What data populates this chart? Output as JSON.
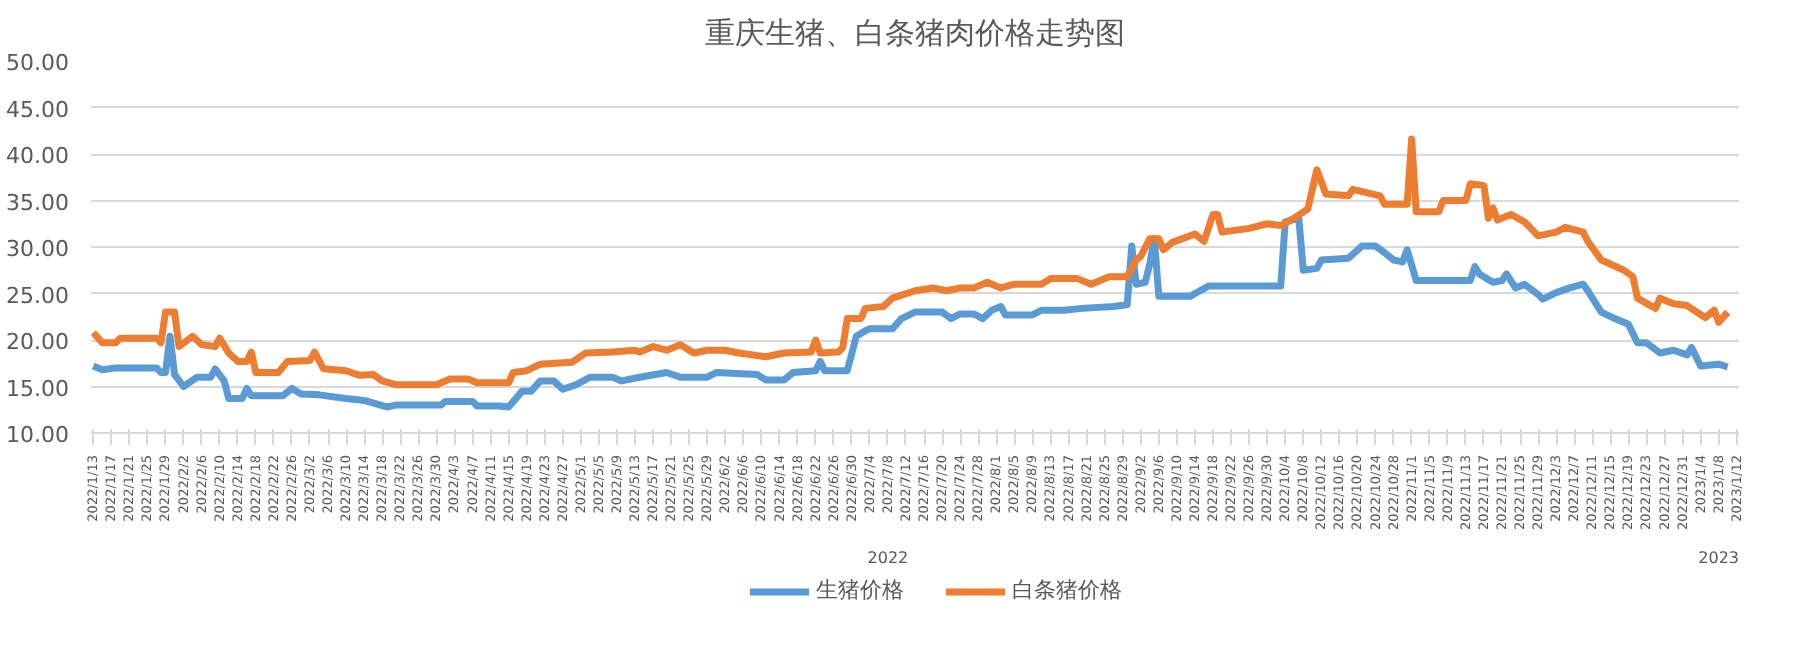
{
  "chart_data": {
    "type": "line",
    "title": "重庆生猪、白条猪肉价格走势图",
    "xlim": [
      "2022-01-13",
      "2023-01-12"
    ],
    "ylim": [
      10,
      50
    ],
    "yticks": [
      {
        "value": 10,
        "label": "10.00"
      },
      {
        "value": 15,
        "label": "15.00"
      },
      {
        "value": 20,
        "label": "20.00"
      },
      {
        "value": 25,
        "label": "25.00"
      },
      {
        "value": 30,
        "label": "30.00"
      },
      {
        "value": 35,
        "label": "35.00"
      },
      {
        "value": 40,
        "label": "40.00"
      },
      {
        "value": 45,
        "label": "45.00"
      },
      {
        "value": 50,
        "label": "50.00"
      }
    ],
    "xticks": [
      {
        "value": "2022-01-13",
        "label": "2022/1/13"
      },
      {
        "value": "2022-01-17",
        "label": "2022/1/17"
      },
      {
        "value": "2022-01-21",
        "label": "2022/1/21"
      },
      {
        "value": "2022-01-25",
        "label": "2022/1/25"
      },
      {
        "value": "2022-01-29",
        "label": "2022/1/29"
      },
      {
        "value": "2022-02-02",
        "label": "2022/2/2"
      },
      {
        "value": "2022-02-06",
        "label": "2022/2/6"
      },
      {
        "value": "2022-02-10",
        "label": "2022/2/10"
      },
      {
        "value": "2022-02-14",
        "label": "2022/2/14"
      },
      {
        "value": "2022-02-18",
        "label": "2022/2/18"
      },
      {
        "value": "2022-02-22",
        "label": "2022/2/22"
      },
      {
        "value": "2022-02-26",
        "label": "2022/2/26"
      },
      {
        "value": "2022-03-02",
        "label": "2022/3/2"
      },
      {
        "value": "2022-03-06",
        "label": "2022/3/6"
      },
      {
        "value": "2022-03-10",
        "label": "2022/3/10"
      },
      {
        "value": "2022-03-14",
        "label": "2022/3/14"
      },
      {
        "value": "2022-03-18",
        "label": "2022/3/18"
      },
      {
        "value": "2022-03-22",
        "label": "2022/3/22"
      },
      {
        "value": "2022-03-26",
        "label": "2022/3/26"
      },
      {
        "value": "2022-03-30",
        "label": "2022/3/30"
      },
      {
        "value": "2022-04-03",
        "label": "2022/4/3"
      },
      {
        "value": "2022-04-07",
        "label": "2022/4/7"
      },
      {
        "value": "2022-04-11",
        "label": "2022/4/11"
      },
      {
        "value": "2022-04-15",
        "label": "2022/4/15"
      },
      {
        "value": "2022-04-19",
        "label": "2022/4/19"
      },
      {
        "value": "2022-04-23",
        "label": "2022/4/23"
      },
      {
        "value": "2022-04-27",
        "label": "2022/4/27"
      },
      {
        "value": "2022-05-01",
        "label": "2022/5/1"
      },
      {
        "value": "2022-05-05",
        "label": "2022/5/5"
      },
      {
        "value": "2022-05-09",
        "label": "2022/5/9"
      },
      {
        "value": "2022-05-13",
        "label": "2022/5/13"
      },
      {
        "value": "2022-05-17",
        "label": "2022/5/17"
      },
      {
        "value": "2022-05-21",
        "label": "2022/5/21"
      },
      {
        "value": "2022-05-25",
        "label": "2022/5/25"
      },
      {
        "value": "2022-05-29",
        "label": "2022/5/29"
      },
      {
        "value": "2022-06-02",
        "label": "2022/6/2"
      },
      {
        "value": "2022-06-06",
        "label": "2022/6/6"
      },
      {
        "value": "2022-06-10",
        "label": "2022/6/10"
      },
      {
        "value": "2022-06-14",
        "label": "2022/6/14"
      },
      {
        "value": "2022-06-18",
        "label": "2022/6/18"
      },
      {
        "value": "2022-06-22",
        "label": "2022/6/22"
      },
      {
        "value": "2022-06-26",
        "label": "2022/6/26"
      },
      {
        "value": "2022-06-30",
        "label": "2022/6/30"
      },
      {
        "value": "2022-07-04",
        "label": "2022/7/4"
      },
      {
        "value": "2022-07-08",
        "label": "2022/7/8"
      },
      {
        "value": "2022-07-12",
        "label": "2022/7/12"
      },
      {
        "value": "2022-07-16",
        "label": "2022/7/16"
      },
      {
        "value": "2022-07-20",
        "label": "2022/7/20"
      },
      {
        "value": "2022-07-24",
        "label": "2022/7/24"
      },
      {
        "value": "2022-07-28",
        "label": "2022/7/28"
      },
      {
        "value": "2022-08-01",
        "label": "2022/8/1"
      },
      {
        "value": "2022-08-05",
        "label": "2022/8/5"
      },
      {
        "value": "2022-08-09",
        "label": "2022/8/9"
      },
      {
        "value": "2022-08-13",
        "label": "2022/8/13"
      },
      {
        "value": "2022-08-17",
        "label": "2022/8/17"
      },
      {
        "value": "2022-08-21",
        "label": "2022/8/21"
      },
      {
        "value": "2022-08-25",
        "label": "2022/8/25"
      },
      {
        "value": "2022-08-29",
        "label": "2022/8/29"
      },
      {
        "value": "2022-09-02",
        "label": "2022/9/2"
      },
      {
        "value": "2022-09-06",
        "label": "2022/9/6"
      },
      {
        "value": "2022-09-10",
        "label": "2022/9/10"
      },
      {
        "value": "2022-09-14",
        "label": "2022/9/14"
      },
      {
        "value": "2022-09-18",
        "label": "2022/9/18"
      },
      {
        "value": "2022-09-22",
        "label": "2022/9/22"
      },
      {
        "value": "2022-09-26",
        "label": "2022/9/26"
      },
      {
        "value": "2022-09-30",
        "label": "2022/9/30"
      },
      {
        "value": "2022-10-04",
        "label": "2022/10/4"
      },
      {
        "value": "2022-10-08",
        "label": "2022/10/8"
      },
      {
        "value": "2022-10-12",
        "label": "2022/10/12"
      },
      {
        "value": "2022-10-16",
        "label": "2022/10/16"
      },
      {
        "value": "2022-10-20",
        "label": "2022/10/20"
      },
      {
        "value": "2022-10-24",
        "label": "2022/10/24"
      },
      {
        "value": "2022-10-28",
        "label": "2022/10/28"
      },
      {
        "value": "2022-11-01",
        "label": "2022/11/1"
      },
      {
        "value": "2022-11-05",
        "label": "2022/11/5"
      },
      {
        "value": "2022-11-09",
        "label": "2022/11/9"
      },
      {
        "value": "2022-11-13",
        "label": "2022/11/13"
      },
      {
        "value": "2022-11-17",
        "label": "2022/11/17"
      },
      {
        "value": "2022-11-21",
        "label": "2022/11/21"
      },
      {
        "value": "2022-11-25",
        "label": "2022/11/25"
      },
      {
        "value": "2022-11-29",
        "label": "2022/11/29"
      },
      {
        "value": "2022-12-03",
        "label": "2022/12/3"
      },
      {
        "value": "2022-12-07",
        "label": "2022/12/7"
      },
      {
        "value": "2022-12-11",
        "label": "2022/12/11"
      },
      {
        "value": "2022-12-15",
        "label": "2022/12/15"
      },
      {
        "value": "2022-12-19",
        "label": "2022/12/19"
      },
      {
        "value": "2022-12-23",
        "label": "2022/12/23"
      },
      {
        "value": "2022-12-27",
        "label": "2022/12/27"
      },
      {
        "value": "2022-12-31",
        "label": "2022/12/31"
      },
      {
        "value": "2023-01-04",
        "label": "2023/1/4"
      },
      {
        "value": "2023-01-08",
        "label": "2023/1/8"
      },
      {
        "value": "2023-01-12",
        "label": "2023/1/12"
      }
    ],
    "annotations": [
      "2022",
      "2023"
    ],
    "grid": "y",
    "legend": "bottom",
    "marker": "none",
    "line_style": "solid",
    "series": [
      {
        "name": "生猪价格",
        "color": "#5b9bd5",
        "x": [
          "2022-01-13",
          "2022-01-15",
          "2022-01-18",
          "2022-01-27",
          "2022-01-28",
          "2022-01-29",
          "2022-01-30",
          "2022-01-31",
          "2022-02-02",
          "2022-02-05",
          "2022-02-08",
          "2022-02-09",
          "2022-02-11",
          "2022-02-12",
          "2022-02-15",
          "2022-02-16",
          "2022-02-17",
          "2022-02-24",
          "2022-02-26",
          "2022-02-28",
          "2022-03-04",
          "2022-03-10",
          "2022-03-14",
          "2022-03-19",
          "2022-03-21",
          "2022-03-31",
          "2022-04-01",
          "2022-04-07",
          "2022-04-08",
          "2022-04-13",
          "2022-04-15",
          "2022-04-18",
          "2022-04-20",
          "2022-04-22",
          "2022-04-25",
          "2022-04-27",
          "2022-04-30",
          "2022-05-03",
          "2022-05-08",
          "2022-05-10",
          "2022-05-14",
          "2022-05-20",
          "2022-05-23",
          "2022-05-29",
          "2022-05-31",
          "2022-06-09",
          "2022-06-11",
          "2022-06-15",
          "2022-06-17",
          "2022-06-22",
          "2022-06-23",
          "2022-06-24",
          "2022-06-29",
          "2022-07-01",
          "2022-07-03",
          "2022-07-04",
          "2022-07-09",
          "2022-07-11",
          "2022-07-14",
          "2022-07-20",
          "2022-07-22",
          "2022-07-24",
          "2022-07-27",
          "2022-07-29",
          "2022-07-31",
          "2022-08-02",
          "2022-08-03",
          "2022-08-09",
          "2022-08-11",
          "2022-08-16",
          "2022-08-20",
          "2022-08-27",
          "2022-08-30",
          "2022-08-31",
          "2022-09-01",
          "2022-09-03",
          "2022-09-04",
          "2022-09-05",
          "2022-09-06",
          "2022-09-13",
          "2022-09-14",
          "2022-09-17",
          "2022-10-03",
          "2022-10-04",
          "2022-10-07",
          "2022-10-08",
          "2022-10-11",
          "2022-10-12",
          "2022-10-18",
          "2022-10-21",
          "2022-10-24",
          "2022-10-26",
          "2022-10-28",
          "2022-10-30",
          "2022-10-31",
          "2022-11-02",
          "2022-11-14",
          "2022-11-15",
          "2022-11-16",
          "2022-11-19",
          "2022-11-21",
          "2022-11-22",
          "2022-11-24",
          "2022-11-26",
          "2022-11-29",
          "2022-11-30",
          "2022-12-03",
          "2022-12-06",
          "2022-12-09",
          "2022-12-10",
          "2022-12-13",
          "2022-12-16",
          "2022-12-19",
          "2022-12-21",
          "2022-12-23",
          "2022-12-26",
          "2022-12-29",
          "2023-01-01",
          "2023-01-02",
          "2023-01-04",
          "2023-01-08",
          "2023-01-10"
        ],
        "values": [
          17.2,
          16.8,
          17.0,
          17.0,
          16.5,
          16.5,
          20.4,
          16.3,
          15.0,
          16.0,
          16.0,
          16.9,
          15.6,
          13.7,
          13.7,
          14.8,
          14.0,
          14.0,
          14.8,
          14.2,
          14.1,
          13.7,
          13.5,
          12.8,
          13.0,
          13.0,
          13.4,
          13.4,
          12.9,
          12.9,
          12.8,
          14.5,
          14.5,
          15.6,
          15.6,
          14.7,
          15.2,
          16.0,
          16.0,
          15.6,
          16.0,
          16.5,
          16.0,
          16.0,
          16.5,
          16.3,
          15.7,
          15.7,
          16.5,
          16.7,
          17.7,
          16.7,
          16.7,
          20.4,
          21.0,
          21.2,
          21.2,
          22.3,
          23.0,
          23.0,
          22.3,
          22.8,
          22.8,
          22.3,
          23.2,
          23.6,
          22.7,
          22.7,
          23.2,
          23.2,
          23.4,
          23.6,
          23.8,
          30.1,
          26.0,
          26.2,
          28.2,
          30.9,
          24.7,
          24.7,
          25.0,
          25.8,
          25.8,
          32.7,
          33.1,
          27.5,
          27.7,
          28.6,
          28.8,
          30.1,
          30.1,
          29.4,
          28.6,
          28.4,
          29.7,
          26.4,
          26.4,
          27.9,
          27.1,
          26.2,
          26.4,
          27.1,
          25.6,
          26.0,
          24.9,
          24.4,
          25.1,
          25.6,
          26.0,
          25.3,
          23.0,
          22.3,
          21.7,
          19.7,
          19.7,
          18.6,
          18.9,
          18.4,
          19.2,
          17.2,
          17.4,
          17.1
        ]
      },
      {
        "name": "白条猪价格",
        "color": "#ed7d31",
        "x": [
          "2022-01-13",
          "2022-01-15",
          "2022-01-18",
          "2022-01-19",
          "2022-01-27",
          "2022-01-28",
          "2022-01-29",
          "2022-01-31",
          "2022-02-01",
          "2022-02-04",
          "2022-02-06",
          "2022-02-09",
          "2022-02-10",
          "2022-02-12",
          "2022-02-14",
          "2022-02-16",
          "2022-02-17",
          "2022-02-18",
          "2022-02-23",
          "2022-02-25",
          "2022-03-02",
          "2022-03-03",
          "2022-03-05",
          "2022-03-10",
          "2022-03-13",
          "2022-03-16",
          "2022-03-18",
          "2022-03-21",
          "2022-03-30",
          "2022-04-02",
          "2022-04-06",
          "2022-04-08",
          "2022-04-15",
          "2022-04-16",
          "2022-04-19",
          "2022-04-22",
          "2022-04-29",
          "2022-05-02",
          "2022-05-08",
          "2022-05-13",
          "2022-05-14",
          "2022-05-17",
          "2022-05-20",
          "2022-05-23",
          "2022-05-26",
          "2022-05-29",
          "2022-06-02",
          "2022-06-05",
          "2022-06-11",
          "2022-06-15",
          "2022-06-21",
          "2022-06-22",
          "2022-06-23",
          "2022-06-27",
          "2022-06-28",
          "2022-06-29",
          "2022-07-02",
          "2022-07-03",
          "2022-07-07",
          "2022-07-09",
          "2022-07-14",
          "2022-07-18",
          "2022-07-21",
          "2022-07-24",
          "2022-07-27",
          "2022-07-30",
          "2022-08-02",
          "2022-08-05",
          "2022-08-11",
          "2022-08-13",
          "2022-08-19",
          "2022-08-22",
          "2022-08-26",
          "2022-08-30",
          "2022-09-01",
          "2022-09-02",
          "2022-09-04",
          "2022-09-06",
          "2022-09-07",
          "2022-09-09",
          "2022-09-14",
          "2022-09-16",
          "2022-09-18",
          "2022-09-19",
          "2022-09-20",
          "2022-09-26",
          "2022-09-30",
          "2022-10-03",
          "2022-10-06",
          "2022-10-09",
          "2022-10-11",
          "2022-10-13",
          "2022-10-18",
          "2022-10-19",
          "2022-10-25",
          "2022-10-26",
          "2022-10-31",
          "2022-11-01",
          "2022-11-02",
          "2022-11-07",
          "2022-11-08",
          "2022-11-13",
          "2022-11-14",
          "2022-11-17",
          "2022-11-18",
          "2022-11-19",
          "2022-11-20",
          "2022-11-23",
          "2022-11-26",
          "2022-11-29",
          "2022-12-03",
          "2022-12-05",
          "2022-12-09",
          "2022-12-10",
          "2022-12-13",
          "2022-12-18",
          "2022-12-20",
          "2022-12-21",
          "2022-12-25",
          "2022-12-26",
          "2022-12-29",
          "2023-01-01",
          "2023-01-05",
          "2023-01-07",
          "2023-01-08",
          "2023-01-10"
        ],
        "values": [
          20.8,
          19.7,
          19.7,
          20.2,
          20.2,
          19.7,
          23.0,
          23.0,
          19.3,
          20.4,
          19.5,
          19.3,
          20.2,
          18.6,
          17.7,
          17.7,
          18.7,
          16.5,
          16.5,
          17.7,
          17.8,
          18.7,
          16.9,
          16.7,
          16.2,
          16.3,
          15.6,
          15.2,
          15.2,
          15.8,
          15.8,
          15.4,
          15.4,
          16.5,
          16.7,
          17.4,
          17.6,
          18.6,
          18.7,
          18.9,
          18.7,
          19.3,
          18.9,
          19.5,
          18.6,
          18.9,
          18.9,
          18.6,
          18.2,
          18.6,
          18.7,
          20.0,
          18.6,
          18.7,
          19.2,
          22.3,
          22.3,
          23.4,
          23.6,
          24.5,
          25.3,
          25.6,
          25.3,
          25.6,
          25.6,
          26.2,
          25.6,
          26.0,
          26.0,
          26.6,
          26.6,
          26.0,
          26.8,
          26.8,
          28.6,
          29.0,
          30.9,
          30.9,
          29.7,
          30.5,
          31.4,
          30.6,
          33.5,
          33.5,
          31.6,
          32.0,
          32.5,
          32.3,
          33.1,
          34.1,
          38.3,
          35.7,
          35.5,
          36.2,
          35.5,
          34.6,
          34.6,
          41.6,
          33.8,
          33.8,
          35.0,
          35.0,
          36.8,
          36.6,
          33.1,
          34.2,
          32.9,
          33.5,
          32.7,
          31.2,
          31.6,
          32.1,
          31.6,
          30.6,
          28.6,
          27.5,
          26.8,
          24.5,
          23.4,
          24.5,
          23.9,
          23.7,
          22.4,
          23.2,
          21.9,
          23.0
        ]
      }
    ]
  }
}
